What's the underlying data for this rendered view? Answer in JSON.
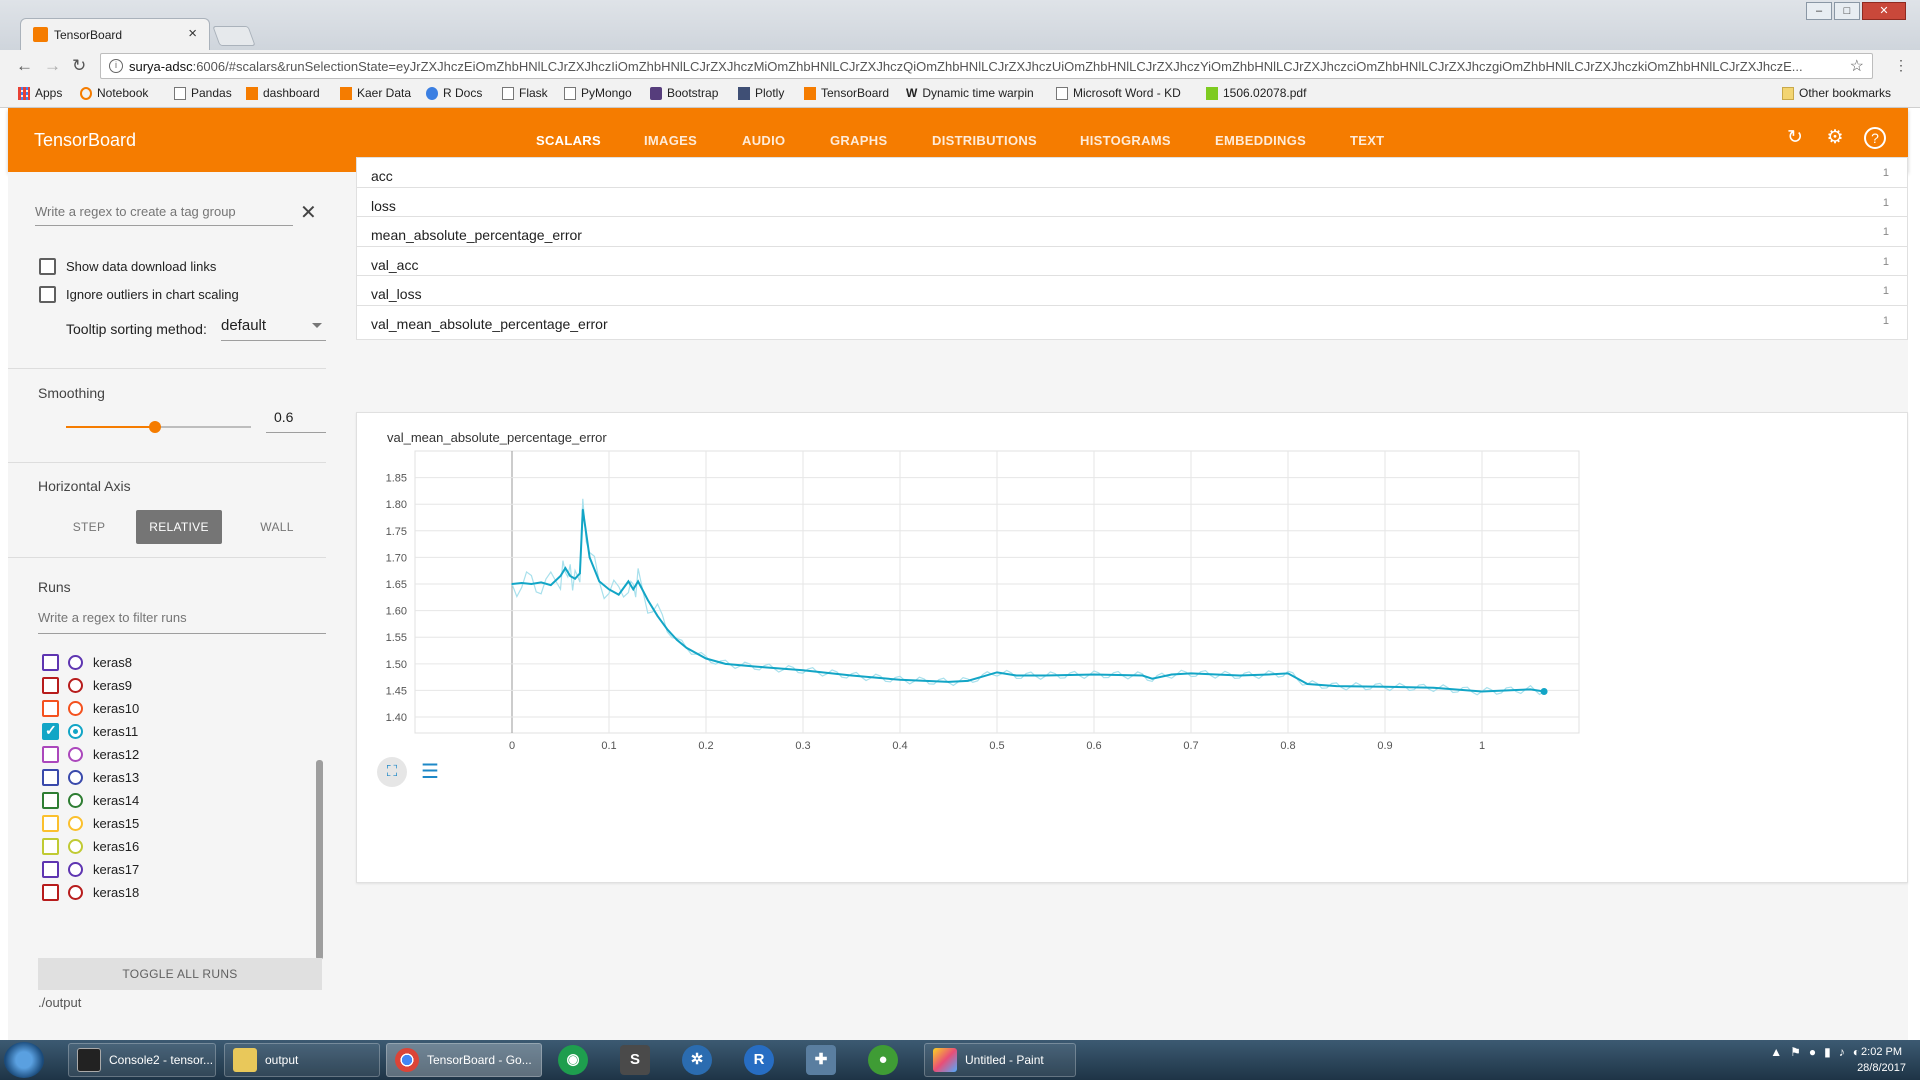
{
  "browser": {
    "tab_title": "TensorBoard",
    "url_host": "surya-adsc",
    "url_rest": ":6006/#scalars&runSelectionState=eyJrZXJhczEiOmZhbHNlLCJrZXJhczIiOmZhbHNlLCJrZXJhczMiOmZhbHNlLCJrZXJhczQiOmZhbHNlLCJrZXJhczUiOmZhbHNlLCJrZXJhczYiOmZhbHNlLCJrZXJhczciOmZhbHNlLCJrZXJhczgiOmZhbHNlLCJrZXJhczkiOmZhbHNlLCJrZXJhczE..."
  },
  "bookmarks": {
    "items": [
      "Apps",
      "Notebook",
      "Pandas",
      "dashboard",
      "Kaer Data",
      "R Docs",
      "Flask",
      "PyMongo",
      "Bootstrap",
      "Plotly",
      "TensorBoard",
      "Dynamic time warpin",
      "Microsoft Word - KD",
      "1506.02078.pdf"
    ],
    "other": "Other bookmarks"
  },
  "header": {
    "title": "TensorBoard",
    "tabs": [
      "SCALARS",
      "IMAGES",
      "AUDIO",
      "GRAPHS",
      "DISTRIBUTIONS",
      "HISTOGRAMS",
      "EMBEDDINGS",
      "TEXT"
    ],
    "active_tab": "SCALARS"
  },
  "sidebar": {
    "tag_regex_placeholder": "Write a regex to create a tag group",
    "show_download_links": "Show data download links",
    "ignore_outliers": "Ignore outliers in chart scaling",
    "tooltip_sort_label": "Tooltip sorting method:",
    "tooltip_sort_value": "default",
    "smoothing_label": "Smoothing",
    "smoothing_value": "0.6",
    "smoothing_fraction": 0.6,
    "horizontal_axis_label": "Horizontal Axis",
    "axis_options": [
      "STEP",
      "RELATIVE",
      "WALL"
    ],
    "axis_selected": "RELATIVE",
    "runs_label": "Runs",
    "runs_filter_placeholder": "Write a regex to filter runs",
    "runs": [
      {
        "name": "keras8",
        "color": "#5e35b1",
        "checked": false
      },
      {
        "name": "keras9",
        "color": "#b71c1c",
        "checked": false
      },
      {
        "name": "keras10",
        "color": "#f4511e",
        "checked": false
      },
      {
        "name": "keras11",
        "color": "#12a5c6",
        "checked": true
      },
      {
        "name": "keras12",
        "color": "#ab47bc",
        "checked": false
      },
      {
        "name": "keras13",
        "color": "#3949ab",
        "checked": false
      },
      {
        "name": "keras14",
        "color": "#2e7d32",
        "checked": false
      },
      {
        "name": "keras15",
        "color": "#fbc02d",
        "checked": false
      },
      {
        "name": "keras16",
        "color": "#c0ca33",
        "checked": false
      },
      {
        "name": "keras17",
        "color": "#5e35b1",
        "checked": false
      },
      {
        "name": "keras18",
        "color": "#b71c1c",
        "checked": false
      }
    ],
    "toggle_all": "TOGGLE ALL RUNS",
    "logdir": "./output"
  },
  "main": {
    "tags": [
      {
        "name": "acc",
        "count": "1"
      },
      {
        "name": "loss",
        "count": "1"
      },
      {
        "name": "mean_absolute_percentage_error",
        "count": "1"
      },
      {
        "name": "val_acc",
        "count": "1"
      },
      {
        "name": "val_loss",
        "count": "1"
      },
      {
        "name": "val_mean_absolute_percentage_error",
        "count": "1"
      }
    ]
  },
  "chart_data": {
    "type": "line",
    "title": "val_mean_absolute_percentage_error",
    "xlabel": "",
    "ylabel": "",
    "xlim": [
      -0.1,
      1.1
    ],
    "ylim": [
      1.37,
      1.9
    ],
    "x_ticks": [
      "0",
      "0.1",
      "0.2",
      "0.3",
      "0.4",
      "0.5",
      "0.6",
      "0.7",
      "0.8",
      "0.9",
      "1"
    ],
    "y_ticks": [
      "1.40",
      "1.45",
      "1.50",
      "1.55",
      "1.60",
      "1.65",
      "1.70",
      "1.75",
      "1.80",
      "1.85"
    ],
    "grid": true,
    "line_color": "#12a5c6",
    "raw_color": "#a8e0ec",
    "series": [
      {
        "name": "keras11",
        "x": [
          0,
          0.01,
          0.02,
          0.03,
          0.04,
          0.05,
          0.055,
          0.06,
          0.065,
          0.07,
          0.073,
          0.08,
          0.09,
          0.1,
          0.11,
          0.12,
          0.125,
          0.13,
          0.14,
          0.15,
          0.16,
          0.17,
          0.18,
          0.2,
          0.22,
          0.25,
          0.3,
          0.35,
          0.4,
          0.45,
          0.47,
          0.5,
          0.52,
          0.55,
          0.6,
          0.65,
          0.66,
          0.68,
          0.7,
          0.75,
          0.78,
          0.8,
          0.82,
          0.85,
          0.9,
          0.95,
          1.0,
          1.05,
          1.064
        ],
        "y": [
          1.65,
          1.652,
          1.65,
          1.653,
          1.648,
          1.665,
          1.68,
          1.665,
          1.66,
          1.67,
          1.79,
          1.7,
          1.655,
          1.64,
          1.63,
          1.655,
          1.64,
          1.655,
          1.62,
          1.59,
          1.565,
          1.545,
          1.53,
          1.51,
          1.5,
          1.495,
          1.488,
          1.478,
          1.47,
          1.466,
          1.468,
          1.484,
          1.478,
          1.478,
          1.48,
          1.478,
          1.472,
          1.48,
          1.482,
          1.478,
          1.48,
          1.482,
          1.462,
          1.458,
          1.457,
          1.455,
          1.448,
          1.452,
          1.448
        ]
      }
    ]
  },
  "taskbar": {
    "items": [
      "Console2 - tensor...",
      "output",
      "TensorBoard - Go...",
      "Untitled - Paint"
    ],
    "time": "2:02 PM",
    "date": "28/8/2017"
  }
}
